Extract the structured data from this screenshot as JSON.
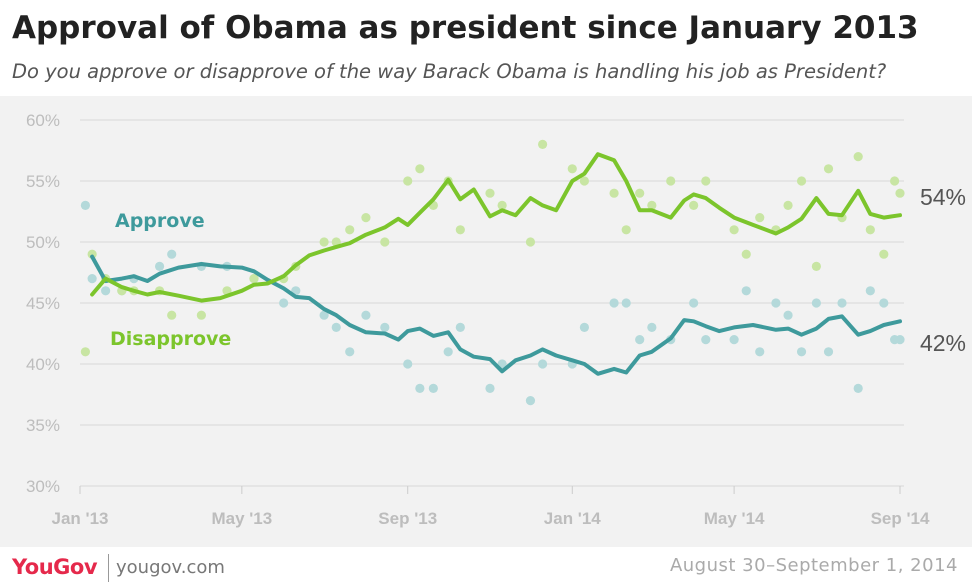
{
  "header": {
    "title": "Approval of Obama as president since January 2013",
    "subtitle": "Do you approve or disapprove of the way Barack Obama is handling his job as President?"
  },
  "footer": {
    "logo": "YouGov",
    "site": "yougov.com",
    "dates": "August 30–September 1, 2014"
  },
  "colors": {
    "approve": "#3e9a9c",
    "approve_dot": "#b4d9da",
    "disapprove": "#7cc52c",
    "disapprove_dot": "#c8e5a3",
    "grid": "#d8d8d8",
    "tick": "#bdbdbd"
  },
  "chart_data": {
    "type": "line",
    "title": "Approval of Obama as president since January 2013",
    "subtitle": "Do you approve or disapprove of the way Barack Obama is handling his job as President?",
    "xlabel": "",
    "ylabel": "",
    "x_ticks": [
      "Jan '13",
      "May '13",
      "Sep '13",
      "Jan '14",
      "May '14",
      "Sep '14"
    ],
    "y_ticks": [
      "30%",
      "35%",
      "40%",
      "45%",
      "50%",
      "55%",
      "60%"
    ],
    "ylim": [
      30,
      60
    ],
    "xlim": [
      "2013-01-01",
      "2014-09-01"
    ],
    "grid": true,
    "legend": "inline labels",
    "end_labels": {
      "approve": "42%",
      "disapprove": "54%"
    },
    "series": [
      {
        "name": "Approve",
        "color": "#3e9a9c",
        "trend": [
          [
            "2013-01-10",
            48.8
          ],
          [
            "2013-01-20",
            46.8
          ],
          [
            "2013-02-01",
            47.0
          ],
          [
            "2013-02-10",
            47.2
          ],
          [
            "2013-02-20",
            46.8
          ],
          [
            "2013-03-01",
            47.4
          ],
          [
            "2013-03-15",
            47.9
          ],
          [
            "2013-04-01",
            48.2
          ],
          [
            "2013-04-15",
            48.0
          ],
          [
            "2013-05-01",
            47.9
          ],
          [
            "2013-05-10",
            47.6
          ],
          [
            "2013-05-20",
            46.9
          ],
          [
            "2013-06-01",
            46.2
          ],
          [
            "2013-06-10",
            45.5
          ],
          [
            "2013-06-20",
            45.4
          ],
          [
            "2013-07-01",
            44.5
          ],
          [
            "2013-07-10",
            44.0
          ],
          [
            "2013-07-20",
            43.2
          ],
          [
            "2013-08-01",
            42.6
          ],
          [
            "2013-08-15",
            42.5
          ],
          [
            "2013-08-25",
            42.0
          ],
          [
            "2013-09-01",
            42.7
          ],
          [
            "2013-09-10",
            42.9
          ],
          [
            "2013-09-20",
            42.3
          ],
          [
            "2013-10-01",
            42.6
          ],
          [
            "2013-10-10",
            41.2
          ],
          [
            "2013-10-20",
            40.6
          ],
          [
            "2013-11-01",
            40.4
          ],
          [
            "2013-11-10",
            39.4
          ],
          [
            "2013-11-20",
            40.3
          ],
          [
            "2013-12-01",
            40.7
          ],
          [
            "2013-12-10",
            41.2
          ],
          [
            "2013-12-20",
            40.7
          ],
          [
            "2014-01-01",
            40.3
          ],
          [
            "2014-01-10",
            40.0
          ],
          [
            "2014-01-20",
            39.2
          ],
          [
            "2014-02-01",
            39.6
          ],
          [
            "2014-02-10",
            39.3
          ],
          [
            "2014-02-20",
            40.7
          ],
          [
            "2014-03-01",
            41.0
          ],
          [
            "2014-03-15",
            42.1
          ],
          [
            "2014-03-25",
            43.6
          ],
          [
            "2014-04-01",
            43.5
          ],
          [
            "2014-04-10",
            43.1
          ],
          [
            "2014-04-20",
            42.7
          ],
          [
            "2014-05-01",
            43.0
          ],
          [
            "2014-05-15",
            43.2
          ],
          [
            "2014-06-01",
            42.8
          ],
          [
            "2014-06-10",
            42.9
          ],
          [
            "2014-06-20",
            42.4
          ],
          [
            "2014-07-01",
            42.9
          ],
          [
            "2014-07-10",
            43.7
          ],
          [
            "2014-07-20",
            43.9
          ],
          [
            "2014-08-01",
            42.4
          ],
          [
            "2014-08-10",
            42.7
          ],
          [
            "2014-08-20",
            43.2
          ],
          [
            "2014-09-01",
            43.5
          ]
        ],
        "polls": [
          [
            "2013-01-05",
            53
          ],
          [
            "2013-01-10",
            47
          ],
          [
            "2013-01-20",
            46
          ],
          [
            "2013-02-01",
            46
          ],
          [
            "2013-02-10",
            47
          ],
          [
            "2013-03-01",
            48
          ],
          [
            "2013-03-10",
            49
          ],
          [
            "2013-04-01",
            48
          ],
          [
            "2013-04-20",
            48
          ],
          [
            "2013-05-10",
            47
          ],
          [
            "2013-06-01",
            45
          ],
          [
            "2013-06-10",
            46
          ],
          [
            "2013-07-01",
            44
          ],
          [
            "2013-07-10",
            43
          ],
          [
            "2013-07-20",
            41
          ],
          [
            "2013-08-01",
            44
          ],
          [
            "2013-08-15",
            43
          ],
          [
            "2013-09-01",
            40
          ],
          [
            "2013-09-10",
            38
          ],
          [
            "2013-09-20",
            38
          ],
          [
            "2013-10-01",
            41
          ],
          [
            "2013-10-10",
            43
          ],
          [
            "2013-11-01",
            38
          ],
          [
            "2013-11-10",
            40
          ],
          [
            "2013-12-01",
            37
          ],
          [
            "2013-12-10",
            40
          ],
          [
            "2014-01-01",
            40
          ],
          [
            "2014-01-10",
            43
          ],
          [
            "2014-02-01",
            45
          ],
          [
            "2014-02-10",
            45
          ],
          [
            "2014-02-20",
            42
          ],
          [
            "2014-03-01",
            43
          ],
          [
            "2014-03-15",
            42
          ],
          [
            "2014-04-01",
            45
          ],
          [
            "2014-04-10",
            42
          ],
          [
            "2014-05-01",
            42
          ],
          [
            "2014-05-10",
            46
          ],
          [
            "2014-05-20",
            41
          ],
          [
            "2014-06-01",
            45
          ],
          [
            "2014-06-10",
            44
          ],
          [
            "2014-06-20",
            41
          ],
          [
            "2014-07-01",
            45
          ],
          [
            "2014-07-10",
            41
          ],
          [
            "2014-07-20",
            45
          ],
          [
            "2014-08-01",
            38
          ],
          [
            "2014-08-10",
            46
          ],
          [
            "2014-08-20",
            45
          ],
          [
            "2014-08-28",
            42
          ],
          [
            "2014-09-01",
            42
          ]
        ]
      },
      {
        "name": "Disapprove",
        "color": "#7cc52c",
        "trend": [
          [
            "2013-01-10",
            45.7
          ],
          [
            "2013-01-20",
            47.0
          ],
          [
            "2013-02-01",
            46.3
          ],
          [
            "2013-02-10",
            46.0
          ],
          [
            "2013-02-20",
            45.7
          ],
          [
            "2013-03-01",
            45.9
          ],
          [
            "2013-03-15",
            45.6
          ],
          [
            "2013-04-01",
            45.2
          ],
          [
            "2013-04-15",
            45.4
          ],
          [
            "2013-05-01",
            46.0
          ],
          [
            "2013-05-10",
            46.5
          ],
          [
            "2013-05-20",
            46.6
          ],
          [
            "2013-06-01",
            47.2
          ],
          [
            "2013-06-10",
            48.1
          ],
          [
            "2013-06-20",
            48.9
          ],
          [
            "2013-07-01",
            49.3
          ],
          [
            "2013-07-10",
            49.6
          ],
          [
            "2013-07-20",
            49.9
          ],
          [
            "2013-08-01",
            50.6
          ],
          [
            "2013-08-15",
            51.2
          ],
          [
            "2013-08-25",
            51.9
          ],
          [
            "2013-09-01",
            51.4
          ],
          [
            "2013-09-10",
            52.4
          ],
          [
            "2013-09-20",
            53.5
          ],
          [
            "2013-10-01",
            55.1
          ],
          [
            "2013-10-10",
            53.5
          ],
          [
            "2013-10-20",
            54.3
          ],
          [
            "2013-11-01",
            52.1
          ],
          [
            "2013-11-10",
            52.6
          ],
          [
            "2013-11-20",
            52.2
          ],
          [
            "2013-12-01",
            53.6
          ],
          [
            "2013-12-10",
            53.0
          ],
          [
            "2013-12-20",
            52.6
          ],
          [
            "2014-01-01",
            55.0
          ],
          [
            "2014-01-10",
            55.6
          ],
          [
            "2014-01-20",
            57.2
          ],
          [
            "2014-02-01",
            56.7
          ],
          [
            "2014-02-10",
            55.0
          ],
          [
            "2014-02-20",
            52.6
          ],
          [
            "2014-03-01",
            52.6
          ],
          [
            "2014-03-15",
            52.0
          ],
          [
            "2014-03-25",
            53.4
          ],
          [
            "2014-04-01",
            53.9
          ],
          [
            "2014-04-10",
            53.6
          ],
          [
            "2014-04-20",
            52.8
          ],
          [
            "2014-05-01",
            52.0
          ],
          [
            "2014-05-15",
            51.4
          ],
          [
            "2014-06-01",
            50.7
          ],
          [
            "2014-06-10",
            51.2
          ],
          [
            "2014-06-20",
            51.9
          ],
          [
            "2014-07-01",
            53.6
          ],
          [
            "2014-07-10",
            52.3
          ],
          [
            "2014-07-20",
            52.2
          ],
          [
            "2014-08-01",
            54.2
          ],
          [
            "2014-08-10",
            52.3
          ],
          [
            "2014-08-20",
            52.0
          ],
          [
            "2014-09-01",
            52.2
          ]
        ],
        "polls": [
          [
            "2013-01-05",
            41
          ],
          [
            "2013-01-10",
            49
          ],
          [
            "2013-01-20",
            47
          ],
          [
            "2013-02-01",
            46
          ],
          [
            "2013-02-10",
            46
          ],
          [
            "2013-03-01",
            46
          ],
          [
            "2013-03-10",
            44
          ],
          [
            "2013-04-01",
            44
          ],
          [
            "2013-04-20",
            46
          ],
          [
            "2013-05-10",
            47
          ],
          [
            "2013-06-01",
            47
          ],
          [
            "2013-06-10",
            48
          ],
          [
            "2013-07-01",
            50
          ],
          [
            "2013-07-10",
            50
          ],
          [
            "2013-07-20",
            51
          ],
          [
            "2013-08-01",
            52
          ],
          [
            "2013-08-15",
            50
          ],
          [
            "2013-09-01",
            55
          ],
          [
            "2013-09-10",
            56
          ],
          [
            "2013-09-20",
            53
          ],
          [
            "2013-10-01",
            55
          ],
          [
            "2013-10-10",
            51
          ],
          [
            "2013-11-01",
            54
          ],
          [
            "2013-11-10",
            53
          ],
          [
            "2013-12-01",
            50
          ],
          [
            "2013-12-10",
            58
          ],
          [
            "2014-01-01",
            56
          ],
          [
            "2014-01-10",
            55
          ],
          [
            "2014-02-01",
            54
          ],
          [
            "2014-02-10",
            51
          ],
          [
            "2014-02-20",
            54
          ],
          [
            "2014-03-01",
            53
          ],
          [
            "2014-03-15",
            55
          ],
          [
            "2014-04-01",
            53
          ],
          [
            "2014-04-10",
            55
          ],
          [
            "2014-05-01",
            51
          ],
          [
            "2014-05-10",
            49
          ],
          [
            "2014-05-20",
            52
          ],
          [
            "2014-06-01",
            51
          ],
          [
            "2014-06-10",
            53
          ],
          [
            "2014-06-20",
            55
          ],
          [
            "2014-07-01",
            48
          ],
          [
            "2014-07-10",
            56
          ],
          [
            "2014-07-20",
            52
          ],
          [
            "2014-08-01",
            57
          ],
          [
            "2014-08-10",
            51
          ],
          [
            "2014-08-20",
            49
          ],
          [
            "2014-08-28",
            55
          ],
          [
            "2014-09-01",
            54
          ]
        ]
      }
    ],
    "inline_labels": [
      "Approve",
      "Disapprove"
    ]
  }
}
